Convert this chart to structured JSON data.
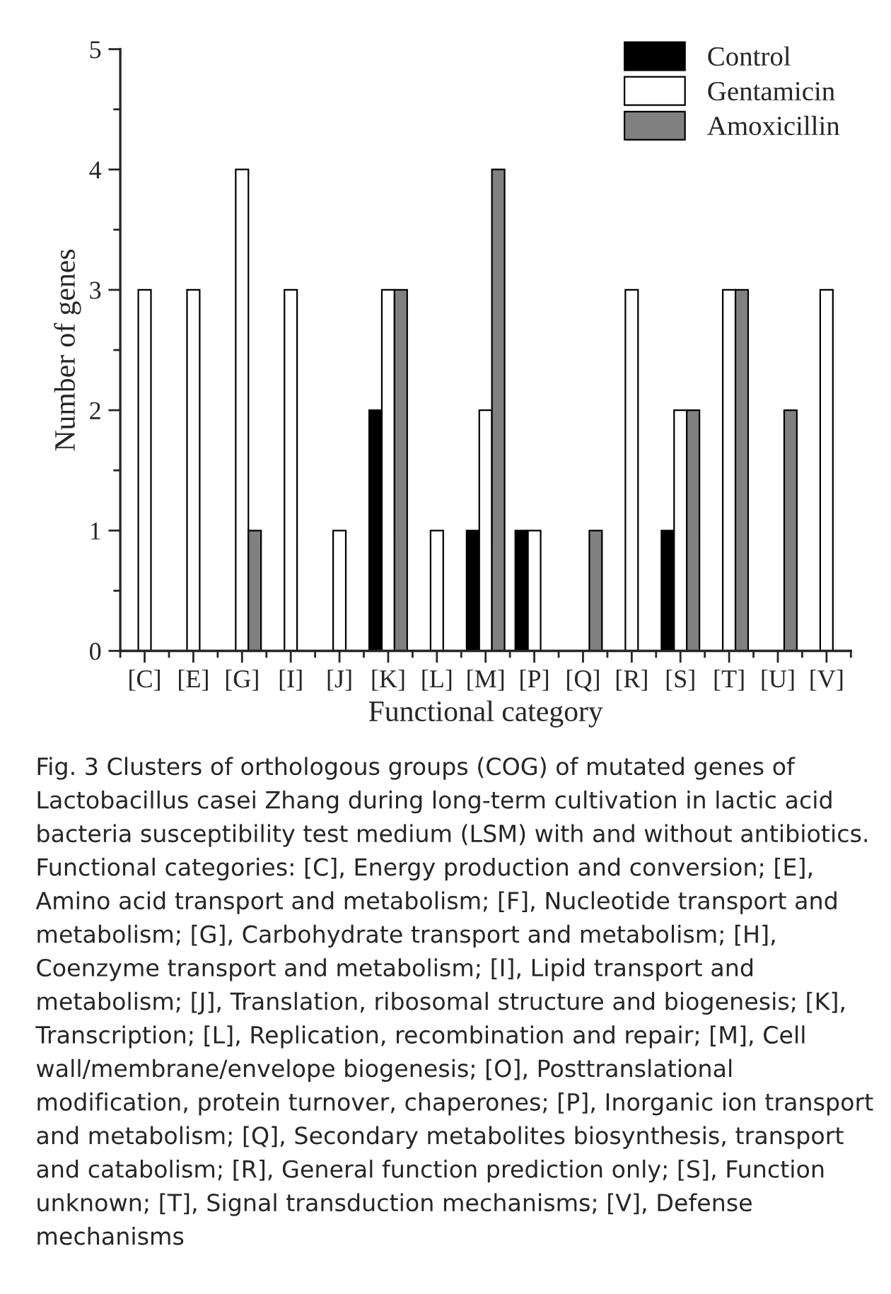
{
  "chart_data": {
    "type": "bar",
    "xlabel": "Functional category",
    "ylabel": "Number of genes",
    "categories": [
      "[C]",
      "[E]",
      "[G]",
      "[I]",
      "[J]",
      "[K]",
      "[L]",
      "[M]",
      "[P]",
      "[Q]",
      "[R]",
      "[S]",
      "[T]",
      "[U]",
      "[V]"
    ],
    "series": [
      {
        "name": "Control",
        "color": "#000000",
        "values": [
          0,
          0,
          0,
          0,
          0,
          2,
          0,
          1,
          1,
          0,
          0,
          1,
          0,
          0,
          0
        ]
      },
      {
        "name": "Gentamicin",
        "color": "#ffffff",
        "values": [
          3,
          3,
          4,
          3,
          1,
          3,
          1,
          2,
          1,
          0,
          3,
          2,
          3,
          0,
          3
        ]
      },
      {
        "name": "Amoxicillin",
        "color": "#808080",
        "values": [
          0,
          0,
          1,
          0,
          0,
          3,
          0,
          4,
          0,
          1,
          0,
          2,
          3,
          2,
          0
        ]
      }
    ],
    "ylim": [
      0,
      5
    ],
    "yticks": [
      0,
      {
        "value": 0.5,
        "label": null
      },
      1,
      {
        "value": 1.5,
        "label": null
      },
      2,
      {
        "value": 2.5,
        "label": null
      },
      3,
      {
        "value": 3.5,
        "label": null
      },
      4,
      {
        "value": 4.5,
        "label": null
      },
      5
    ],
    "grid": false,
    "legend": "top right",
    "annotations": [
      "Fig. 3 Clusters of orthologous groups (COG) of mutated genes of Lactobacillus casei Zhang during long-term cultivation in lactic acid bacteria susceptibility test medium (LSM) with and without antibiotics. Functional categories: [C], Energy production and conversion; [E], Amino acid transport and metabolism; [F], Nucleotide transport and metabolism; [G], Carbohydrate transport and metabolism; [H], Coenzyme transport and metabolism; [I], Lipid transport and metabolism; [J], Translation, ribosomal structure and biogenesis; [K], Transcription; [L], Replication, recombination and repair; [M], Cell wall/membrane/envelope biogenesis; [O], Posttranslational modification, protein turnover, chaperones; [P], Inorganic ion transport and metabolism; [Q], Secondary metabolites biosynthesis, transport and catabolism; [R], General function prediction only; [S], Function unknown; [T], Signal transduction mechanisms; [V], Defense mechanisms"
    ]
  }
}
